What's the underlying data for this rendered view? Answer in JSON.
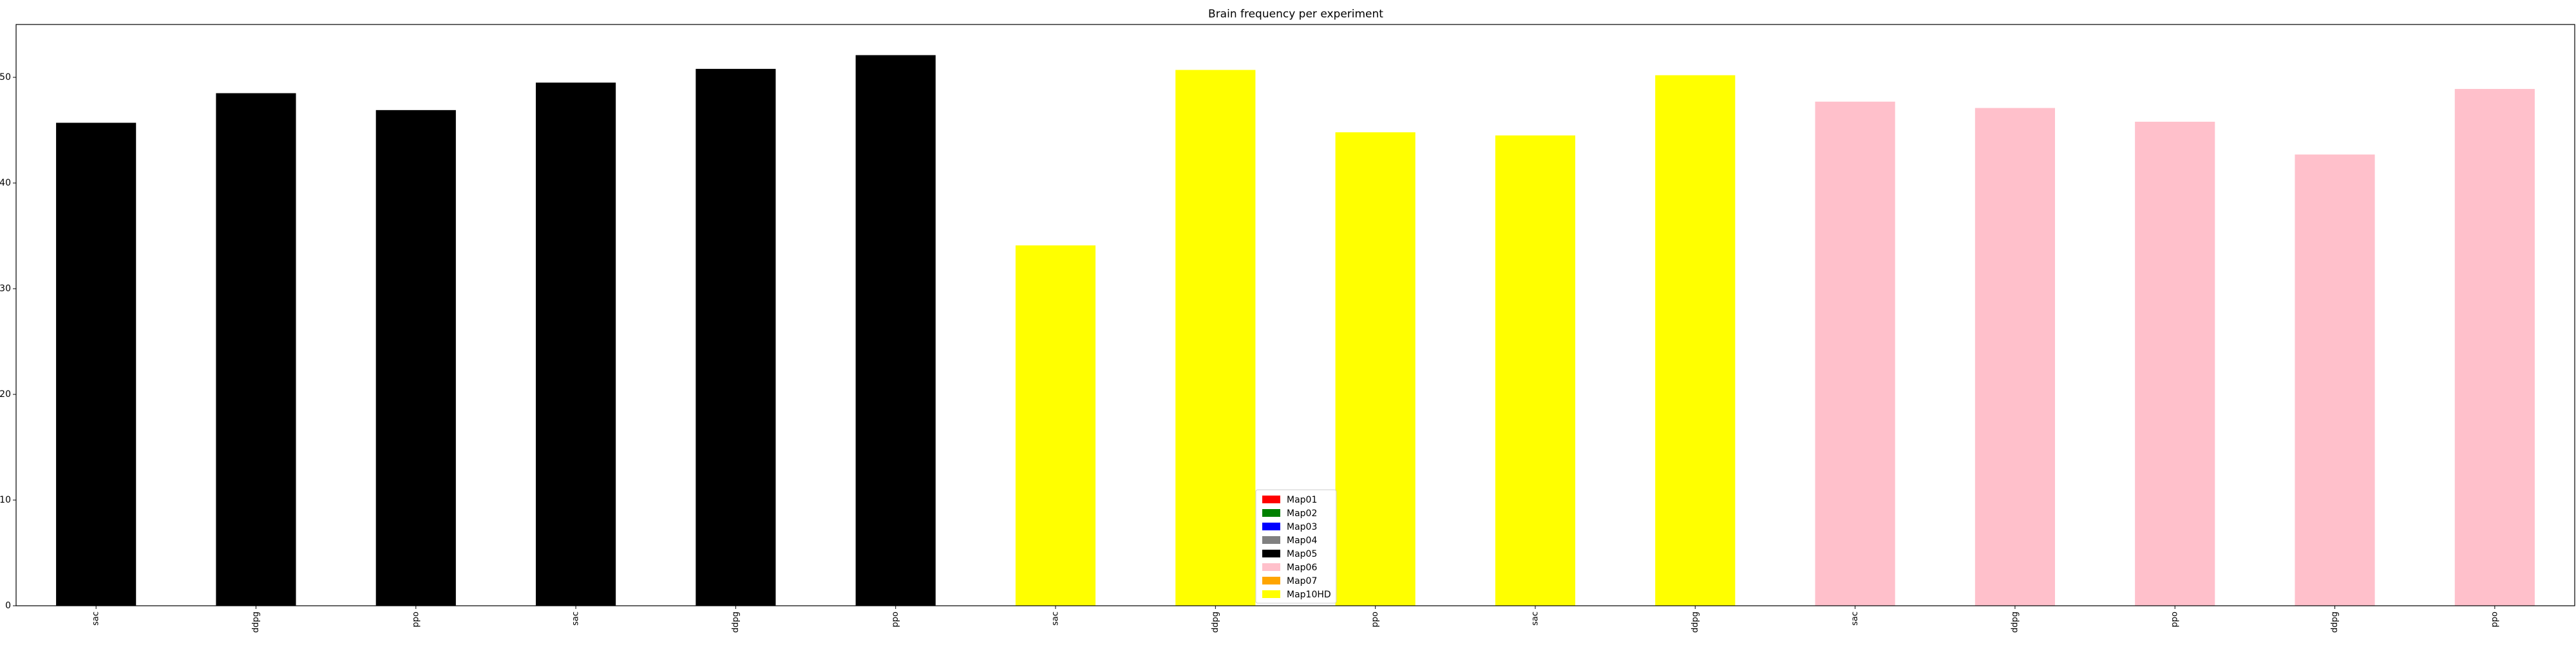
{
  "chart_data": {
    "type": "bar",
    "title": "Brain frequency per experiment",
    "xlabel": "",
    "ylabel": "",
    "ylim": [
      0,
      55
    ],
    "yticks": [
      0,
      10,
      20,
      30,
      40,
      50
    ],
    "categories": [
      "sac",
      "ddpg",
      "ppo",
      "sac",
      "ddpg",
      "ppo",
      "sac",
      "ddpg",
      "ppo",
      "sac",
      "ddpg",
      "sac",
      "ddpg",
      "ppo",
      "ddpg",
      "ppo"
    ],
    "values": [
      45.7,
      48.5,
      46.9,
      49.5,
      50.8,
      52.1,
      34.1,
      50.7,
      44.8,
      44.5,
      50.2,
      47.7,
      47.1,
      45.8,
      42.7,
      48.9
    ],
    "bar_colors": [
      "#000000",
      "#000000",
      "#000000",
      "#000000",
      "#000000",
      "#000000",
      "#ffff00",
      "#ffff00",
      "#ffff00",
      "#ffff00",
      "#ffff00",
      "#ffc0cb",
      "#ffc0cb",
      "#ffc0cb",
      "#ffc0cb",
      "#ffc0cb"
    ],
    "grid": false,
    "legend_position": "bottom-center",
    "legend": [
      {
        "label": "Map01",
        "color": "#ff0000"
      },
      {
        "label": "Map02",
        "color": "#008000"
      },
      {
        "label": "Map03",
        "color": "#0000ff"
      },
      {
        "label": "Map04",
        "color": "#808080"
      },
      {
        "label": "Map05",
        "color": "#000000"
      },
      {
        "label": "Map06",
        "color": "#ffc0cb"
      },
      {
        "label": "Map07",
        "color": "#ffa500"
      },
      {
        "label": "Map10HD",
        "color": "#ffff00"
      }
    ]
  }
}
